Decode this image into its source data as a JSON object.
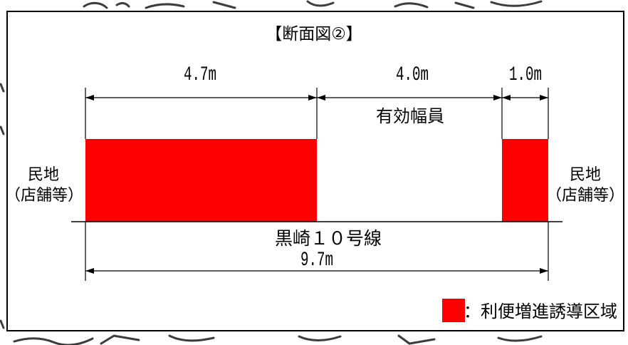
{
  "title": "【断面図②】",
  "dimensions": {
    "segment_1": "4.7m",
    "segment_2": "4.0m",
    "segment_3": "1.0m",
    "total": "9.7m"
  },
  "effective_width_label": "有効幅員",
  "road_name": "黒崎１０号線",
  "left_land": {
    "line1": "民地",
    "line2": "（店舗等）"
  },
  "right_land": {
    "line1": "民地",
    "line2": "（店舗等）"
  },
  "legend": {
    "label": "：利便増進誘導区域"
  },
  "colors": {
    "zone": "#ff0000",
    "line": "#000000",
    "background": "#ffffff"
  }
}
